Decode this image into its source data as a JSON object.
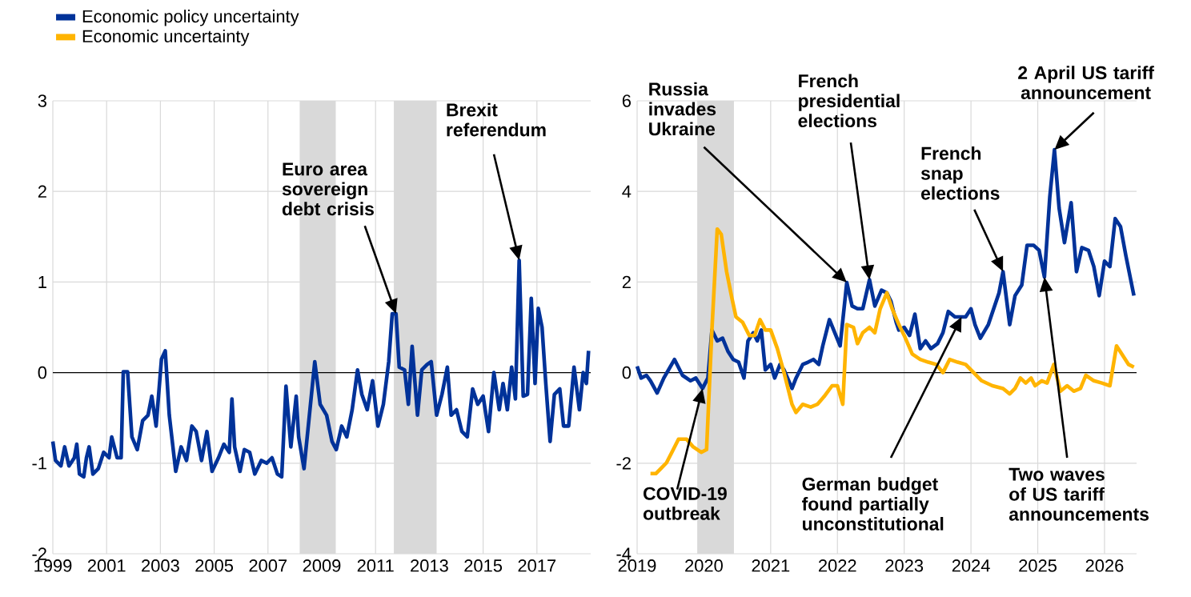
{
  "chart_data": [
    {
      "type": "line",
      "xlim": [
        1999,
        2019
      ],
      "ylim": [
        -2,
        3
      ],
      "xticks": [
        1999,
        2001,
        2003,
        2005,
        2007,
        2009,
        2011,
        2013,
        2015,
        2017
      ],
      "yticks": [
        -2,
        -1,
        0,
        1,
        2,
        3
      ],
      "grid": true,
      "bands": [
        {
          "axis": "x",
          "from": 2008.18,
          "to": 2009.52,
          "color": "#d9d9d9"
        },
        {
          "axis": "x",
          "from": 2011.68,
          "to": 2013.27,
          "color": "#d9d9d9"
        }
      ],
      "ref_lines": [
        {
          "axis": "y",
          "value": 0,
          "color": "#000000"
        }
      ],
      "annotations": [
        {
          "text": "Euro area sovereign debt crisis",
          "x": 2011.76,
          "y": 0.65
        },
        {
          "text": "Brexit referendum",
          "x": 2016.34,
          "y": 1.24
        }
      ],
      "series": [
        {
          "color": "#003299",
          "x": [
            1999.0,
            1999.1,
            1999.3,
            1999.44,
            1999.6,
            1999.8,
            1999.89,
            1999.99,
            2000.15,
            2000.25,
            2000.35,
            2000.49,
            2000.69,
            2000.89,
            2001.09,
            2001.19,
            2001.39,
            2001.54,
            2001.62,
            2001.78,
            2001.94,
            2002.14,
            2002.34,
            2002.54,
            2002.68,
            2002.84,
            2003.04,
            2003.18,
            2003.33,
            2003.57,
            2003.77,
            2003.97,
            2004.17,
            2004.33,
            2004.53,
            2004.73,
            2004.92,
            2005.16,
            2005.36,
            2005.56,
            2005.66,
            2005.76,
            2005.96,
            2006.12,
            2006.32,
            2006.51,
            2006.75,
            2006.95,
            2007.15,
            2007.35,
            2007.51,
            2007.67,
            2007.85,
            2008.05,
            2008.14,
            2008.34,
            2008.54,
            2008.74,
            2008.94,
            2009.18,
            2009.38,
            2009.54,
            2009.74,
            2009.93,
            2010.13,
            2010.33,
            2010.49,
            2010.69,
            2010.89,
            2011.09,
            2011.29,
            2011.49,
            2011.62,
            2011.76,
            2011.88,
            2012.08,
            2012.22,
            2012.36,
            2012.56,
            2012.72,
            2012.92,
            2013.07,
            2013.27,
            2013.47,
            2013.67,
            2013.81,
            2014.01,
            2014.21,
            2014.41,
            2014.61,
            2014.8,
            2015.0,
            2015.2,
            2015.4,
            2015.6,
            2015.74,
            2015.9,
            2016.06,
            2016.2,
            2016.34,
            2016.49,
            2016.65,
            2016.79,
            2016.93,
            2017.05,
            2017.19,
            2017.33,
            2017.49,
            2017.65,
            2017.85,
            2017.99,
            2018.18,
            2018.38,
            2018.58,
            2018.72,
            2018.84,
            2018.92
          ],
          "values": [
            -0.76,
            -0.97,
            -1.03,
            -0.82,
            -1.03,
            -0.94,
            -0.79,
            -1.12,
            -1.15,
            -0.94,
            -0.82,
            -1.12,
            -1.06,
            -0.88,
            -0.94,
            -0.71,
            -0.94,
            -0.94,
            0.01,
            0.01,
            -0.71,
            -0.85,
            -0.53,
            -0.47,
            -0.26,
            -0.59,
            0.15,
            0.24,
            -0.47,
            -1.09,
            -0.82,
            -0.97,
            -0.59,
            -0.65,
            -0.97,
            -0.65,
            -1.09,
            -0.94,
            -0.79,
            -0.88,
            -0.29,
            -0.82,
            -1.09,
            -0.85,
            -0.88,
            -1.12,
            -0.97,
            -1.0,
            -0.94,
            -1.12,
            -1.15,
            -0.15,
            -0.82,
            -0.26,
            -0.71,
            -1.06,
            -0.47,
            0.12,
            -0.35,
            -0.47,
            -0.76,
            -0.85,
            -0.59,
            -0.71,
            -0.41,
            0.03,
            -0.24,
            -0.41,
            -0.09,
            -0.59,
            -0.35,
            0.12,
            0.65,
            0.65,
            0.06,
            0.03,
            -0.35,
            0.29,
            -0.47,
            0.03,
            0.09,
            0.12,
            -0.47,
            -0.24,
            0.06,
            -0.47,
            -0.41,
            -0.65,
            -0.71,
            -0.18,
            -0.35,
            -0.26,
            -0.65,
            0.0,
            -0.41,
            -0.12,
            -0.41,
            0.06,
            -0.29,
            1.24,
            -0.26,
            -0.24,
            0.82,
            -0.12,
            0.71,
            0.5,
            -0.12,
            -0.76,
            -0.24,
            -0.18,
            -0.59,
            -0.59,
            0.06,
            -0.41,
            0.0,
            -0.12,
            0.24
          ]
        }
      ]
    },
    {
      "type": "line",
      "xlim": [
        2019,
        2026.48
      ],
      "ylim": [
        -4,
        6
      ],
      "xticks": [
        2019,
        2020,
        2021,
        2022,
        2023,
        2024,
        2025,
        2026
      ],
      "yticks": [
        -4,
        -2,
        0,
        2,
        4,
        6
      ],
      "grid": true,
      "legend": "top left",
      "bands": [
        {
          "axis": "x",
          "from": 2019.9,
          "to": 2020.45,
          "color": "#d9d9d9"
        }
      ],
      "ref_lines": [
        {
          "axis": "y",
          "value": 0,
          "color": "#000000"
        }
      ],
      "annotations": [
        {
          "text": "Russia invades Ukraine",
          "x": 2022.14,
          "y": 1.99
        },
        {
          "text": "French presidential elections",
          "x": 2022.48,
          "y": 2.05
        },
        {
          "text": "French snap elections",
          "x": 2024.48,
          "y": 2.23
        },
        {
          "text": "2 April US tariff announcement",
          "x": 2025.25,
          "y": 4.92
        },
        {
          "text": "Two waves of US tariff announcements",
          "x": 2025.1,
          "y": 2.11
        },
        {
          "text": "COVID-19 outbreak",
          "x": 2019.98,
          "y": -0.35
        },
        {
          "text": "German budget found partially unconstitutional",
          "x": 2023.86,
          "y": 1.23
        }
      ],
      "series": [
        {
          "name": "Economic policy uncertainty",
          "color": "#003299",
          "x": [
            2019.0,
            2019.06,
            2019.14,
            2019.2,
            2019.3,
            2019.4,
            2019.56,
            2019.68,
            2019.8,
            2019.88,
            2019.98,
            2020.06,
            2020.12,
            2020.2,
            2020.28,
            2020.36,
            2020.44,
            2020.52,
            2020.6,
            2020.66,
            2020.74,
            2020.8,
            2020.86,
            2020.92,
            2021.0,
            2021.06,
            2021.14,
            2021.2,
            2021.32,
            2021.38,
            2021.48,
            2021.56,
            2021.64,
            2021.72,
            2021.78,
            2021.88,
            2021.96,
            2022.04,
            2022.14,
            2022.22,
            2022.3,
            2022.38,
            2022.48,
            2022.56,
            2022.66,
            2022.74,
            2022.8,
            2022.88,
            2022.92,
            2023.0,
            2023.08,
            2023.16,
            2023.24,
            2023.32,
            2023.4,
            2023.5,
            2023.58,
            2023.66,
            2023.76,
            2023.86,
            2023.92,
            2024.0,
            2024.06,
            2024.14,
            2024.26,
            2024.34,
            2024.42,
            2024.48,
            2024.58,
            2024.66,
            2024.76,
            2024.84,
            2024.94,
            2025.02,
            2025.1,
            2025.18,
            2025.25,
            2025.32,
            2025.4,
            2025.5,
            2025.58,
            2025.66,
            2025.76,
            2025.84,
            2025.92,
            2026.0,
            2026.08,
            2026.16,
            2026.24,
            2026.32,
            2026.44
          ],
          "values": [
            0.14,
            -0.12,
            -0.06,
            -0.18,
            -0.45,
            -0.12,
            0.29,
            -0.06,
            -0.18,
            -0.12,
            -0.35,
            -0.12,
            0.94,
            0.7,
            0.76,
            0.47,
            0.29,
            0.23,
            -0.12,
            0.7,
            0.88,
            0.7,
            0.94,
            0.06,
            0.18,
            -0.12,
            0.18,
            0.06,
            -0.35,
            -0.12,
            0.18,
            0.23,
            0.29,
            0.18,
            0.59,
            1.17,
            0.88,
            0.59,
            1.99,
            1.47,
            1.41,
            1.41,
            2.05,
            1.47,
            1.82,
            1.76,
            1.58,
            1.11,
            0.94,
            1.0,
            0.82,
            1.29,
            0.53,
            0.7,
            0.53,
            0.64,
            0.88,
            1.35,
            1.23,
            1.23,
            1.23,
            1.41,
            1.06,
            0.76,
            1.06,
            1.41,
            1.76,
            2.23,
            1.06,
            1.7,
            1.93,
            2.81,
            2.81,
            2.7,
            2.11,
            3.87,
            4.92,
            3.63,
            2.87,
            3.75,
            2.23,
            2.76,
            2.7,
            2.34,
            1.7,
            2.46,
            2.34,
            3.4,
            3.22,
            2.58,
            1.7
          ]
        },
        {
          "name": "Economic uncertainty",
          "color": "#ffb400",
          "x": [
            2019.2,
            2019.28,
            2019.36,
            2019.44,
            2019.52,
            2019.62,
            2019.74,
            2019.84,
            2019.96,
            2020.04,
            2020.12,
            2020.2,
            2020.26,
            2020.34,
            2020.42,
            2020.48,
            2020.58,
            2020.68,
            2020.76,
            2020.84,
            2020.92,
            2021.0,
            2021.1,
            2021.2,
            2021.32,
            2021.38,
            2021.48,
            2021.6,
            2021.7,
            2021.8,
            2021.92,
            2022.0,
            2022.08,
            2022.14,
            2022.24,
            2022.3,
            2022.38,
            2022.48,
            2022.56,
            2022.64,
            2022.74,
            2022.82,
            2022.92,
            2023.0,
            2023.12,
            2023.24,
            2023.36,
            2023.48,
            2023.58,
            2023.68,
            2023.8,
            2023.92,
            2024.04,
            2024.16,
            2024.32,
            2024.48,
            2024.58,
            2024.66,
            2024.74,
            2024.82,
            2024.9,
            2024.96,
            2025.06,
            2025.14,
            2025.24,
            2025.34,
            2025.44,
            2025.54,
            2025.64,
            2025.72,
            2025.84,
            2025.96,
            2026.08,
            2026.18,
            2026.26,
            2026.36,
            2026.44
          ],
          "values": [
            -2.23,
            -2.23,
            -2.11,
            -1.99,
            -1.76,
            -1.47,
            -1.47,
            -1.64,
            -1.76,
            -1.7,
            0.94,
            3.17,
            3.05,
            2.23,
            1.64,
            1.23,
            1.11,
            0.82,
            0.82,
            1.17,
            0.94,
            0.94,
            0.53,
            0.0,
            -0.7,
            -0.88,
            -0.7,
            -0.76,
            -0.7,
            -0.53,
            -0.29,
            -0.29,
            -0.7,
            1.06,
            1.0,
            0.64,
            0.88,
            1.0,
            0.88,
            1.41,
            1.76,
            1.41,
            1.06,
            0.82,
            0.41,
            0.29,
            0.23,
            0.18,
            0.0,
            0.29,
            0.23,
            0.18,
            0.0,
            -0.18,
            -0.29,
            -0.35,
            -0.47,
            -0.35,
            -0.12,
            -0.23,
            -0.12,
            -0.29,
            -0.18,
            -0.23,
            0.18,
            -0.41,
            -0.29,
            -0.41,
            -0.35,
            -0.06,
            -0.18,
            -0.23,
            -0.29,
            0.59,
            0.41,
            0.18,
            0.12
          ]
        }
      ]
    }
  ]
}
